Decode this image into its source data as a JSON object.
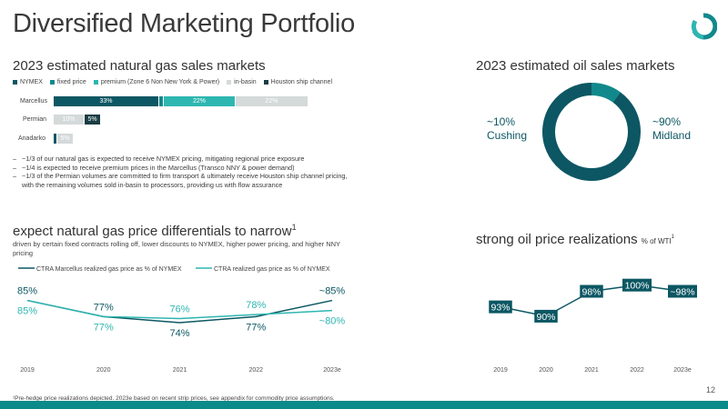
{
  "page": {
    "title": "Diversified Marketing Portfolio",
    "page_number": "12",
    "footnote": "¹Pre-hedge price realizations depicted. 2023e based on recent strip prices, see appendix for commodity price assumptions.",
    "colors": {
      "dark_teal": "#0c5763",
      "mid_teal": "#11898c",
      "light_teal": "#2eb6b1",
      "gray": "#d4d9d9",
      "accent": "#0b8a8a"
    }
  },
  "logo": {
    "icon": "company-logo-icon"
  },
  "gas_sales": {
    "heading": "2023 estimated natural gas sales markets",
    "legend": [
      "NYMEX",
      "fixed price",
      "premium (Zone 6 Non New York & Power)",
      "in-basin",
      "Houston ship channel"
    ],
    "rows": [
      {
        "label": "Marcellus",
        "segments": [
          {
            "series": "NYMEX",
            "value": 33,
            "text": "33%"
          },
          {
            "series": "fixed price",
            "value": 1,
            "text": ""
          },
          {
            "series": "premium (Zone 6 Non New York & Power)",
            "value": 22,
            "text": "22%"
          },
          {
            "series": "in-basin",
            "value": 22,
            "text": "22%"
          }
        ]
      },
      {
        "label": "Permian",
        "segments": [
          {
            "series": "in-basin",
            "value": 10,
            "text": "10%"
          },
          {
            "series": "Houston ship channel",
            "value": 5,
            "text": "5%"
          }
        ]
      },
      {
        "label": "Anadarko",
        "segments": [
          {
            "series": "NYMEX",
            "value": 1,
            "text": ""
          },
          {
            "series": "in-basin",
            "value": 5,
            "text": "5%"
          }
        ]
      }
    ],
    "bullets": [
      "~1/3 of our natural gas is expected to receive NYMEX pricing, mitigating regional price exposure",
      "~1/4 is expected to receive premium prices in the Marcellus (Transco NNY & power demand)",
      "~1/3 of the Permian volumes are committed to firm transport & ultimately receive Houston ship channel pricing, with the remaining volumes sold in-basin to processors, providing us with flow assurance"
    ]
  },
  "oil_sales": {
    "heading": "2023 estimated oil sales markets",
    "left_pct": "~10%",
    "left_label": "Cushing",
    "right_pct": "~90%",
    "right_label": "Midland"
  },
  "gas_diff": {
    "heading": "expect natural gas price differentials to narrow",
    "heading_sup": "1",
    "subheading": "driven by certain fixed contracts rolling off, lower discounts to NYMEX, higher power pricing, and higher NNY pricing"
  },
  "oil_real": {
    "heading": "strong oil price realizations",
    "heading_suffix": "% of WTI",
    "heading_sup": "1"
  },
  "chart_data": [
    {
      "type": "pie",
      "title": "2023 estimated oil sales markets",
      "categories": [
        "Cushing",
        "Midland"
      ],
      "values": [
        10,
        90
      ]
    },
    {
      "type": "line",
      "title": "expect natural gas price differentials to narrow",
      "x": [
        "2019",
        "2020",
        "2021",
        "2022",
        "2023e"
      ],
      "series": [
        {
          "name": "CTRA Marcellus realized gas price as % of NYMEX",
          "values": [
            85,
            77,
            74,
            77,
            85
          ],
          "labels": [
            "85%",
            "77%",
            "74%",
            "77%",
            "~85%"
          ],
          "color": "#0c5763"
        },
        {
          "name": "CTRA realized gas price as % of NYMEX",
          "values": [
            85,
            77,
            76,
            78,
            80
          ],
          "labels": [
            "85%",
            "77%",
            "76%",
            "78%",
            "~80%"
          ],
          "color": "#2eb6b1"
        }
      ],
      "ylim": [
        65,
        92
      ],
      "grid": false,
      "legend": "top-left"
    },
    {
      "type": "line",
      "title": "strong oil price realizations",
      "x": [
        "2019",
        "2020",
        "2021",
        "2022",
        "2023e"
      ],
      "series": [
        {
          "values": [
            93,
            90,
            98,
            100,
            98
          ],
          "labels": [
            "93%",
            "90%",
            "98%",
            "100%",
            "~98%"
          ],
          "color": "#0c5763"
        }
      ],
      "ylim": [
        85,
        104
      ],
      "grid": false
    }
  ]
}
